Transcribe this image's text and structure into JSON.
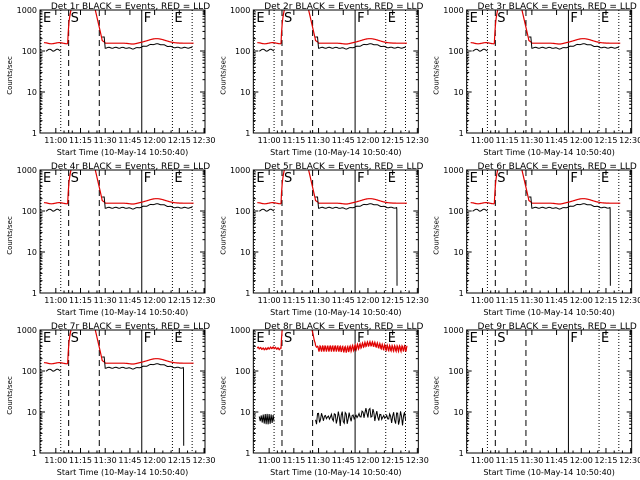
{
  "figure": {
    "xlabel": "Start Time (10-May-14 10:50:40)",
    "ylabel": "Counts/sec"
  },
  "colors": {
    "events": "#000000",
    "lld": "#e00000",
    "axis": "#000000"
  },
  "chart_data": [
    {
      "type": "line",
      "title": "Det 1r BLACK = Events, RED = LLD",
      "events_present": true,
      "events_variant": "normal",
      "lld_variant": "normal"
    },
    {
      "type": "line",
      "title": "Det 2r BLACK = Events, RED = LLD",
      "events_present": true,
      "events_variant": "normal",
      "lld_variant": "normal"
    },
    {
      "type": "line",
      "title": "Det 3r BLACK = Events, RED = LLD",
      "events_present": true,
      "events_variant": "normal",
      "lld_variant": "normal"
    },
    {
      "type": "line",
      "title": "Det 4r BLACK = Events, RED = LLD",
      "events_present": true,
      "events_variant": "normal",
      "lld_variant": "normal"
    },
    {
      "type": "line",
      "title": "Det 5r BLACK = Events, RED = LLD",
      "events_present": true,
      "events_variant": "drop",
      "lld_variant": "normal"
    },
    {
      "type": "line",
      "title": "Det 6r BLACK = Events, RED = LLD",
      "events_present": true,
      "events_variant": "drop",
      "lld_variant": "normal"
    },
    {
      "type": "line",
      "title": "Det 7r BLACK = Events, RED = LLD",
      "events_present": true,
      "events_variant": "drop",
      "lld_variant": "normal"
    },
    {
      "type": "line",
      "title": "Det 8r BLACK = Events, RED = LLD",
      "events_present": true,
      "events_variant": "low",
      "lld_variant": "det8"
    },
    {
      "type": "line",
      "title": "Det 9r BLACK = Events, RED = LLD",
      "events_present": false,
      "events_variant": "none",
      "lld_variant": "none"
    }
  ],
  "axes": {
    "x_tick_labels": [
      "11:00",
      "11:15",
      "11:30",
      "11:45",
      "12:00",
      "12:15",
      "12:30"
    ],
    "x_ticks_hours": [
      11.0,
      11.25,
      11.5,
      11.75,
      12.0,
      12.25,
      12.5
    ],
    "xlim_hours": [
      10.84,
      12.51
    ],
    "y_tick_labels": [
      "1",
      "10",
      "100",
      "1000"
    ],
    "y_ticks": [
      1,
      10,
      100,
      1000
    ],
    "ylim": [
      1,
      1000
    ],
    "yscale": "log",
    "markers": [
      {
        "label": "E",
        "hour": 10.85,
        "style": "dotted"
      },
      {
        "label": "S",
        "hour": 11.13,
        "style": "dashed"
      },
      {
        "label": "",
        "hour": 11.44,
        "style": "dashed"
      },
      {
        "label": "F",
        "hour": 11.87,
        "style": "solid"
      },
      {
        "label": "E",
        "hour": 12.18,
        "style": "dotted"
      },
      {
        "label": "",
        "hour": 11.05,
        "style": "dotted"
      },
      {
        "label": "",
        "hour": 12.38,
        "style": "dotted"
      }
    ]
  }
}
